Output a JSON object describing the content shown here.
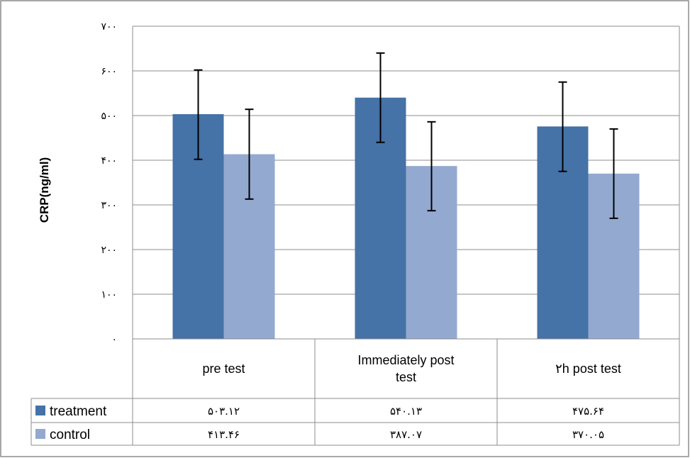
{
  "chart_data": {
    "type": "bar",
    "ylabel": "CRP(ng/ml)",
    "ylim": [
      0,
      700
    ],
    "yticks": [
      "٠",
      "١٠٠",
      "٢٠٠",
      "٣٠٠",
      "۴٠٠",
      "۵٠٠",
      "۶٠٠",
      "٧٠٠"
    ],
    "ytick_values": [
      0,
      100,
      200,
      300,
      400,
      500,
      600,
      700
    ],
    "categories": [
      [
        "pre test"
      ],
      [
        "Immediately post",
        "test"
      ],
      [
        "٢h post test"
      ]
    ],
    "grid": true,
    "legend": "data-table-left",
    "series": [
      {
        "name": "treatment",
        "color": "#4572a7",
        "values": [
          503.12,
          540.13,
          475.64
        ],
        "value_labels": [
          "۵٠٣.١٢",
          "۵۴٠.١٣",
          "۴٧۵.۶۴"
        ],
        "error_low": [
          402,
          440,
          375
        ],
        "error_high": [
          602,
          640,
          575
        ]
      },
      {
        "name": "control",
        "color": "#93a9cf",
        "values": [
          413.46,
          387.07,
          370.05
        ],
        "value_labels": [
          "۴١٣.۴۶",
          "٣٨٧.٠٧",
          "٣٧٠.٠۵"
        ],
        "error_low": [
          313,
          287,
          270
        ],
        "error_high": [
          514,
          486,
          470
        ]
      }
    ]
  }
}
